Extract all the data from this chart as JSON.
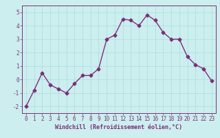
{
  "x": [
    0,
    1,
    2,
    3,
    4,
    5,
    6,
    7,
    8,
    9,
    10,
    11,
    12,
    13,
    14,
    15,
    16,
    17,
    18,
    19,
    20,
    21,
    22,
    23
  ],
  "y": [
    -2.0,
    -0.8,
    0.5,
    -0.4,
    -0.7,
    -1.0,
    -0.3,
    0.3,
    0.3,
    0.8,
    3.0,
    3.3,
    4.5,
    4.4,
    4.0,
    4.8,
    4.4,
    3.5,
    3.0,
    3.0,
    1.7,
    1.1,
    0.8,
    -0.1
  ],
  "line_color": "#7b2f7b",
  "marker": "D",
  "markersize": 2.5,
  "linewidth": 1.0,
  "xlabel": "Windchill (Refroidissement éolien,°C)",
  "xlabel_fontsize": 6,
  "ylim": [
    -2.5,
    5.5
  ],
  "xlim": [
    -0.5,
    23.5
  ],
  "yticks": [
    -2,
    -1,
    0,
    1,
    2,
    3,
    4,
    5
  ],
  "xticks": [
    0,
    1,
    2,
    3,
    4,
    5,
    6,
    7,
    8,
    9,
    10,
    11,
    12,
    13,
    14,
    15,
    16,
    17,
    18,
    19,
    20,
    21,
    22,
    23
  ],
  "tick_fontsize": 5.5,
  "grid_color": "#aadddd",
  "bg_color": "#cceeee",
  "fig_bg_color": "#cceeee",
  "border_color": "#7b2f7b"
}
